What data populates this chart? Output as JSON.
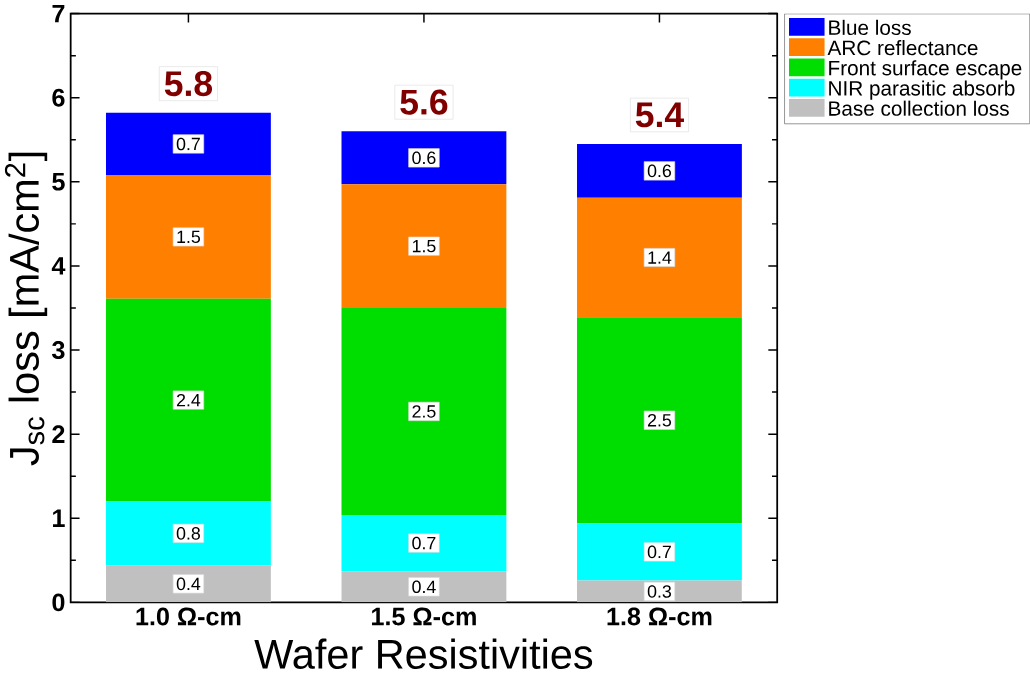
{
  "chart_data": {
    "type": "bar",
    "stacked": true,
    "xlabel": "Wafer Resistivities",
    "ylabel": "J$_{sc}$ loss [mA/cm$^{2}$]",
    "categories": [
      "1.0  Ω-cm",
      "1.5  Ω-cm",
      "1.8  Ω-cm"
    ],
    "series": [
      {
        "name": "Base collection loss",
        "color": "#c0c0c0",
        "values": [
          0.44,
          0.37,
          0.26
        ],
        "value_labels": [
          "0.4",
          "0.4",
          "0.3"
        ]
      },
      {
        "name": "NIR parasitic absorb",
        "color": "#00ffff",
        "values": [
          0.76,
          0.67,
          0.68
        ],
        "value_labels": [
          "0.8",
          "0.7",
          "0.7"
        ]
      },
      {
        "name": "Front surface escape",
        "color": "#00dd00",
        "values": [
          2.41,
          2.46,
          2.45
        ],
        "value_labels": [
          "2.4",
          "2.5",
          "2.5"
        ]
      },
      {
        "name": "ARC reflectance",
        "color": "#ff8000",
        "values": [
          1.47,
          1.47,
          1.42
        ],
        "value_labels": [
          "1.5",
          "1.5",
          "1.4"
        ]
      },
      {
        "name": "Blue loss",
        "color": "#0000ff",
        "values": [
          0.74,
          0.63,
          0.64
        ],
        "value_labels": [
          "0.7",
          "0.6",
          "0.6"
        ]
      }
    ],
    "totals": [
      "5.8",
      "5.6",
      "5.4"
    ],
    "ylim": [
      0,
      7
    ],
    "yticks": [
      0,
      1,
      2,
      3,
      4,
      5,
      6,
      7
    ],
    "legend": "top right",
    "grid": false
  }
}
